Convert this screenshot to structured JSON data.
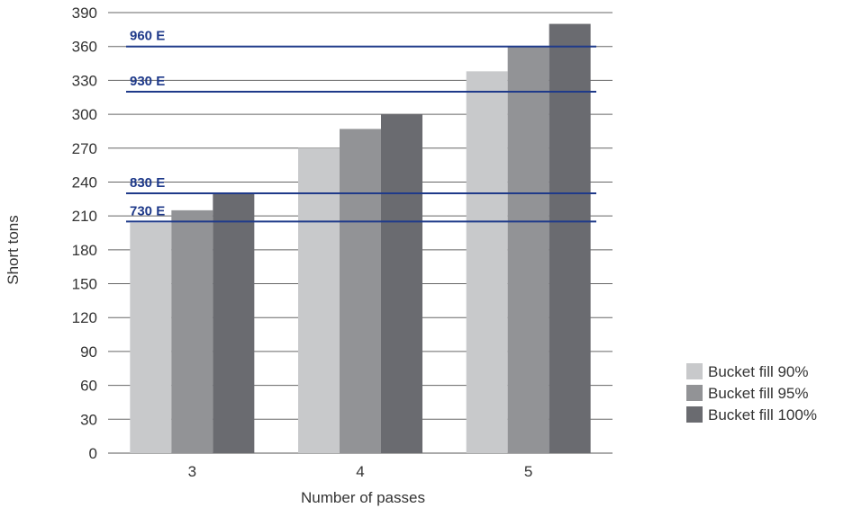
{
  "chart_data": {
    "type": "bar",
    "categories": [
      "3",
      "4",
      "5"
    ],
    "series": [
      {
        "name": "Bucket fill 90%",
        "color": "#c8c9cb",
        "values": [
          204,
          270,
          338
        ]
      },
      {
        "name": "Bucket fill 95%",
        "color": "#929396",
        "values": [
          215,
          287,
          360
        ]
      },
      {
        "name": "Bucket fill 100%",
        "color": "#6a6b70",
        "values": [
          230,
          300,
          380
        ]
      }
    ],
    "reference_lines": [
      {
        "label": "960 E",
        "value": 360
      },
      {
        "label": "930 E",
        "value": 320
      },
      {
        "label": "830 E",
        "value": 230
      },
      {
        "label": "730 E",
        "value": 205
      }
    ],
    "reference_color": "#1f3a8a",
    "xlabel": "Number of passes",
    "ylabel": "Short tons",
    "ylim": [
      0,
      390
    ],
    "yticks": [
      0,
      30,
      60,
      90,
      120,
      150,
      180,
      210,
      240,
      270,
      300,
      330,
      360,
      390
    ],
    "grid": true,
    "legend_position": "bottom-right"
  }
}
